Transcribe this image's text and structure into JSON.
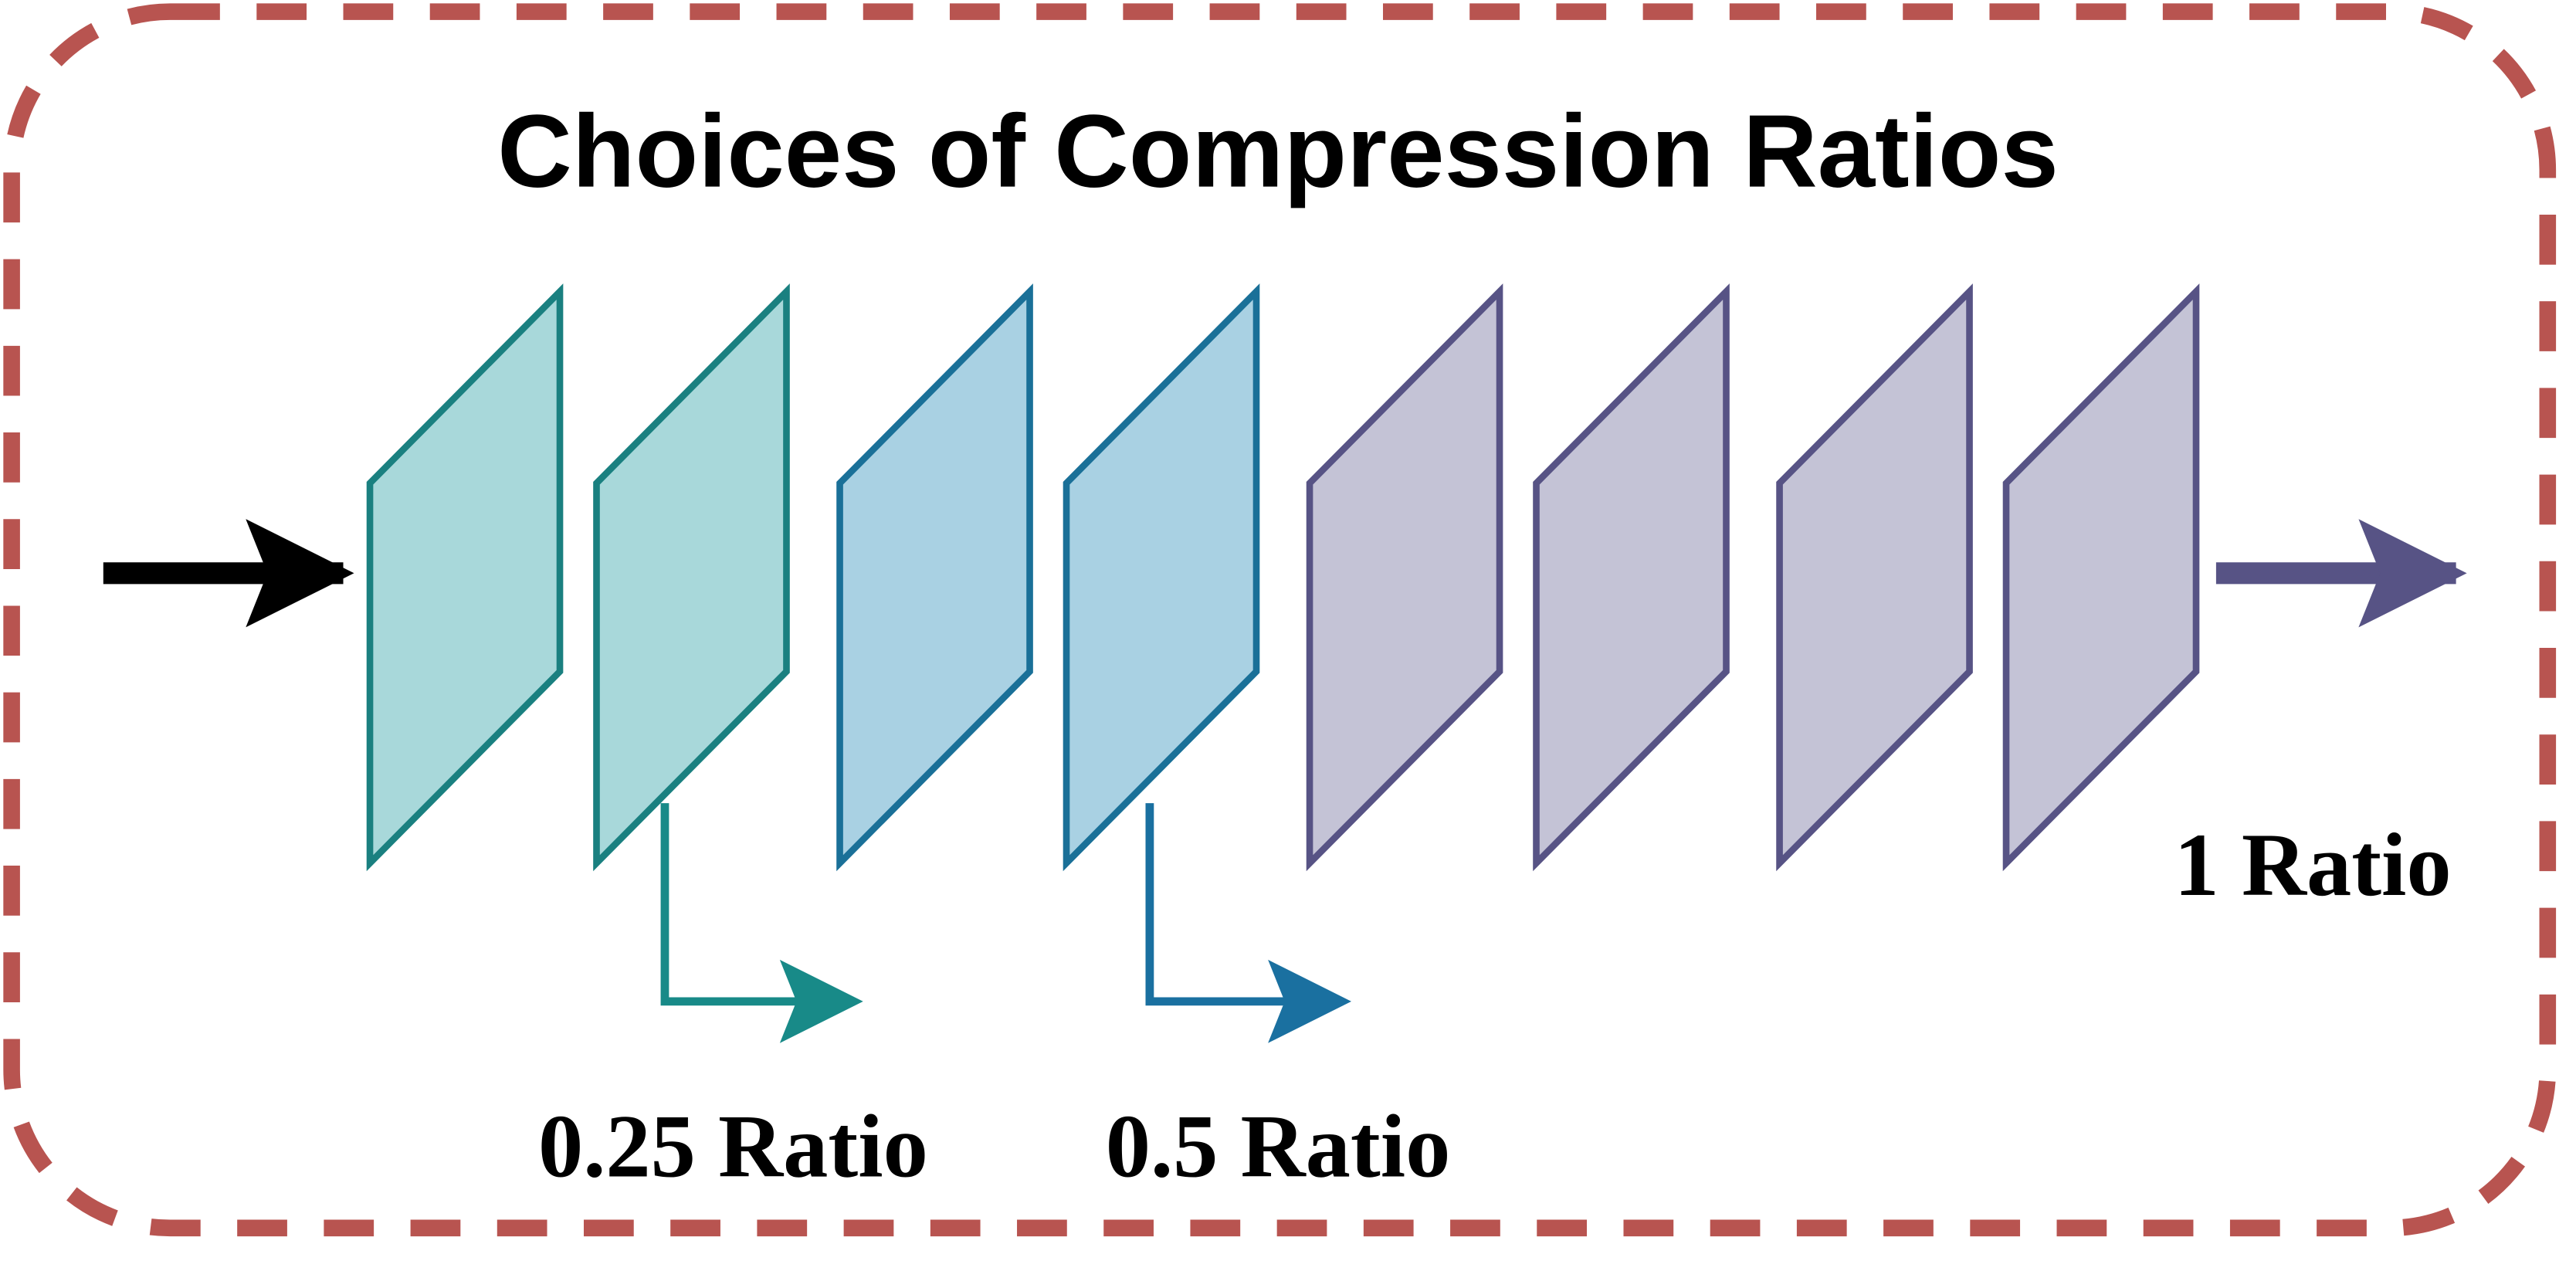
{
  "title": "Choices of Compression Ratios",
  "labels": [
    "0.25 Ratio",
    "0.5 Ratio",
    "1 Ratio"
  ]
}
